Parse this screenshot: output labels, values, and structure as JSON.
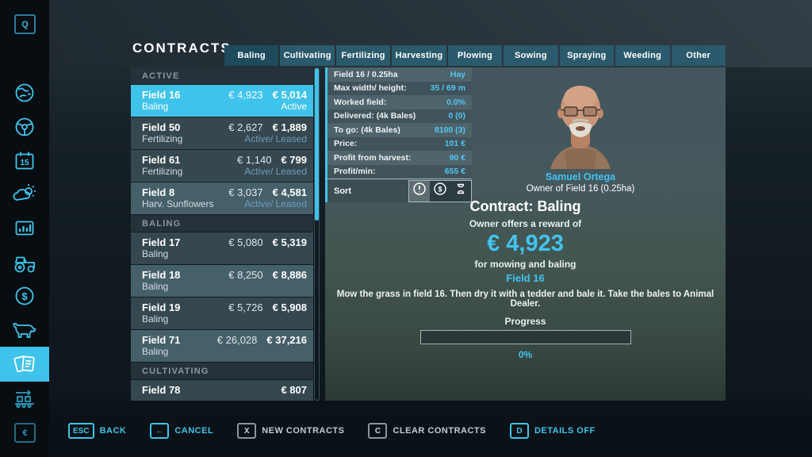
{
  "title": "CONTRACTS",
  "tabs": {
    "items": [
      "Baling",
      "Cultivating",
      "Fertilizing",
      "Harvesting",
      "Plowing",
      "Sowing",
      "Spraying",
      "Weeding",
      "Other"
    ],
    "active": "Baling"
  },
  "sidebar": {
    "top_key": "Q",
    "bottom_key": "€",
    "calendar_day": "15",
    "money_symbol": "$",
    "icons": [
      "map-icon",
      "vehicle-icon",
      "calendar-icon",
      "weather-icon",
      "statistics-icon",
      "tractor-icon",
      "finances-icon",
      "animals-icon",
      "contracts-icon",
      "production-icon"
    ],
    "active_item": "contracts"
  },
  "contract_list": {
    "sections": [
      {
        "header": "ACTIVE",
        "rows": [
          {
            "field": "Field 16",
            "type": "Baling",
            "reward": "€ 4,923",
            "lease": "€ 5,014",
            "status": "Active"
          },
          {
            "field": "Field 50",
            "type": "Fertilizing",
            "reward": "€ 2,627",
            "lease": "€ 1,889",
            "status": "Active/ Leased"
          },
          {
            "field": "Field 61",
            "type": "Fertilizing",
            "reward": "€ 1,140",
            "lease": "€ 799",
            "status": "Active/ Leased"
          },
          {
            "field": "Field 8",
            "type": "Harv. Sunflowers",
            "reward": "€ 3,037",
            "lease": "€ 4,581",
            "status": "Active/ Leased"
          }
        ]
      },
      {
        "header": "BALING",
        "rows": [
          {
            "field": "Field 17",
            "type": "Baling",
            "reward": "€ 5,080",
            "lease": "€ 5,319"
          },
          {
            "field": "Field 18",
            "type": "Baling",
            "reward": "€ 8,250",
            "lease": "€ 8,886"
          },
          {
            "field": "Field 19",
            "type": "Baling",
            "reward": "€ 5,726",
            "lease": "€ 5,908"
          },
          {
            "field": "Field 71",
            "type": "Baling",
            "reward": "€ 26,028",
            "lease": "€ 37,216"
          }
        ]
      },
      {
        "header": "CULTIVATING",
        "rows": [
          {
            "field": "Field 78",
            "type": "",
            "reward": "",
            "lease": "€ 807"
          }
        ]
      }
    ]
  },
  "details": {
    "stats": [
      {
        "label": "Field 16 / 0.25ha",
        "value": "Hay"
      },
      {
        "label": "Max width/ height:",
        "value": "35 / 69 m"
      },
      {
        "label": "Worked field:",
        "value": "0.0%"
      },
      {
        "label": "Delivered: (4k Bales)",
        "value": "0 (0)"
      },
      {
        "label": "To go: (4k Bales)",
        "value": "8100 (3)"
      },
      {
        "label": "Price:",
        "value": "101 €"
      },
      {
        "label": "Profit from harvest:",
        "value": "90 €"
      },
      {
        "label": "Profit/min:",
        "value": "655 €"
      }
    ],
    "sort_label": "Sort",
    "sort_icons": [
      "priority-sort-icon",
      "money-sort-icon",
      "time-sort-icon"
    ],
    "owner": {
      "name": "Samuel Ortega",
      "subtitle": "Owner of Field 16 (0.25ha)"
    },
    "contract": {
      "heading": "Contract: Baling",
      "reward_intro": "Owner offers a reward of",
      "reward": "€ 4,923",
      "reward_for": "for mowing and baling",
      "field": "Field 16",
      "description": "Mow the grass in field 16. Then dry it with a tedder and bale it. Take the bales to Animal Dealer.",
      "progress_label": "Progress",
      "progress_value": "0%",
      "progress_percent": 0
    }
  },
  "bottom_bar": [
    {
      "key": "ESC",
      "label": "BACK",
      "accent": true
    },
    {
      "key": "←",
      "label": "CANCEL",
      "accent": true
    },
    {
      "key": "X",
      "label": "NEW CONTRACTS",
      "accent": false
    },
    {
      "key": "C",
      "label": "CLEAR CONTRACTS",
      "accent": false
    },
    {
      "key": "D",
      "label": "DETAILS OFF",
      "accent": true
    }
  ],
  "colors": {
    "accent": "#3fc3ea",
    "selected_row": "#3fc3ea",
    "value_text": "#53c6f2",
    "leased_text": "#6d9cbc"
  }
}
